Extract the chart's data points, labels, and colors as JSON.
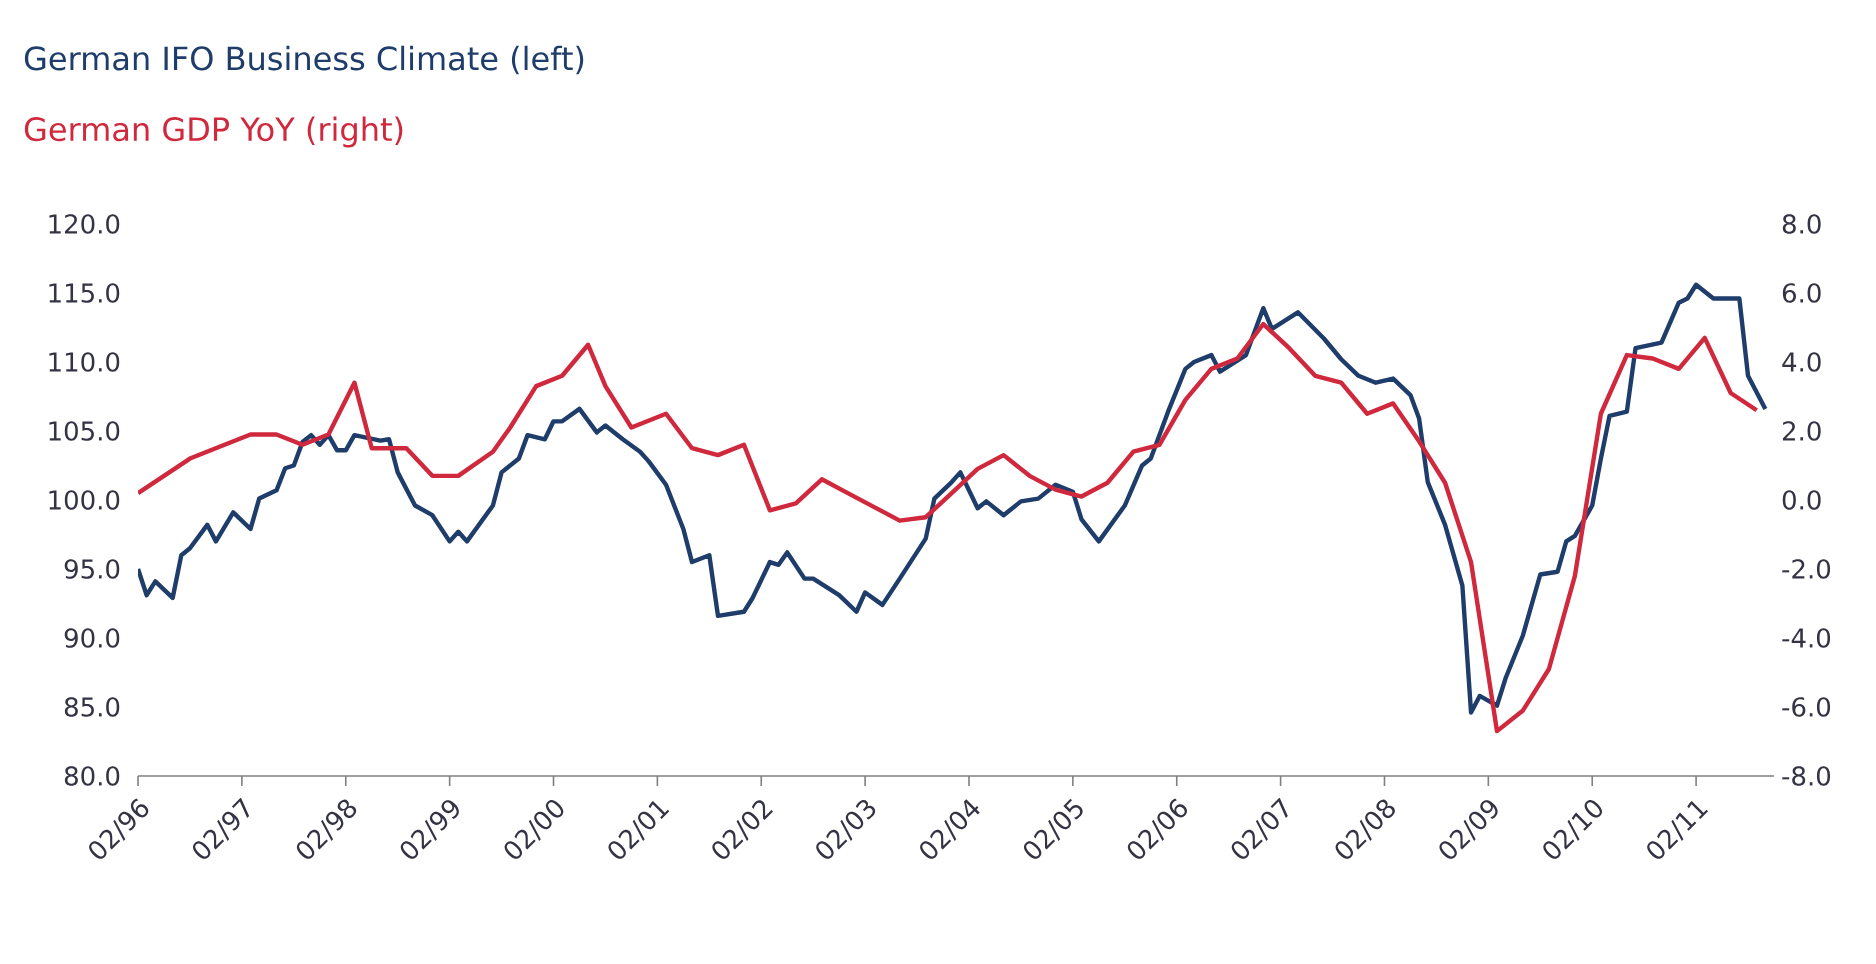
{
  "chart_data": {
    "type": "line",
    "xlim": [
      "1996-02",
      "2011-11"
    ],
    "xticks": [
      {
        "value": "1996-02",
        "label": "02/96"
      },
      {
        "value": "1997-02",
        "label": "02/97"
      },
      {
        "value": "1998-02",
        "label": "02/98"
      },
      {
        "value": "1999-02",
        "label": "02/99"
      },
      {
        "value": "2000-02",
        "label": "02/00"
      },
      {
        "value": "2001-02",
        "label": "02/01"
      },
      {
        "value": "2002-02",
        "label": "02/02"
      },
      {
        "value": "2003-02",
        "label": "02/03"
      },
      {
        "value": "2004-02",
        "label": "02/04"
      },
      {
        "value": "2005-02",
        "label": "02/05"
      },
      {
        "value": "2006-02",
        "label": "02/06"
      },
      {
        "value": "2007-02",
        "label": "02/07"
      },
      {
        "value": "2008-02",
        "label": "02/08"
      },
      {
        "value": "2009-02",
        "label": "02/09"
      },
      {
        "value": "2010-02",
        "label": "02/10"
      },
      {
        "value": "2011-02",
        "label": "02/11"
      }
    ],
    "ylim": [
      80,
      120
    ],
    "yticks": [
      {
        "value": 80,
        "label": "80.0"
      },
      {
        "value": 85,
        "label": "85.0"
      },
      {
        "value": 90,
        "label": "90.0"
      },
      {
        "value": 95,
        "label": "95.0"
      },
      {
        "value": 100,
        "label": "100.0"
      },
      {
        "value": 105,
        "label": "105.0"
      },
      {
        "value": 110,
        "label": "110.0"
      },
      {
        "value": 115,
        "label": "115.0"
      },
      {
        "value": 120,
        "label": "120.0"
      }
    ],
    "y2lim": [
      -8,
      8
    ],
    "y2ticks": [
      {
        "value": -8,
        "label": "-8.0"
      },
      {
        "value": -6,
        "label": "-6.0"
      },
      {
        "value": -4,
        "label": "-4.0"
      },
      {
        "value": -2,
        "label": "-2.0"
      },
      {
        "value": 0,
        "label": "0.0"
      },
      {
        "value": 2,
        "label": "2.0"
      },
      {
        "value": 4,
        "label": "4.0"
      },
      {
        "value": 6,
        "label": "6.0"
      },
      {
        "value": 8,
        "label": "8.0"
      }
    ],
    "grid": false,
    "line_style": "solid",
    "marker": "none",
    "series": [
      {
        "name": "German IFO Business Climate (left)",
        "color": "#1f3d6b",
        "x": [
          "1996-02",
          "1996-03",
          "1996-04",
          "1996-06",
          "1996-07",
          "1996-08",
          "1996-10",
          "1996-11",
          "1997-01",
          "1997-03",
          "1997-04",
          "1997-06",
          "1997-07",
          "1997-08",
          "1997-09",
          "1997-10",
          "1997-11",
          "1997-12",
          "1998-01",
          "1998-02",
          "1998-03",
          "1998-06",
          "1998-07",
          "1998-08",
          "1998-10",
          "1998-12",
          "1999-02",
          "1999-03",
          "1999-04",
          "1999-07",
          "1999-08",
          "1999-10",
          "1999-11",
          "2000-01",
          "2000-02",
          "2000-03",
          "2000-05",
          "2000-07",
          "2000-08",
          "2000-10",
          "2000-12",
          "2001-01",
          "2001-03",
          "2001-05",
          "2001-06",
          "2001-08",
          "2001-09",
          "2001-12",
          "2002-01",
          "2002-03",
          "2002-04",
          "2002-05",
          "2002-07",
          "2002-08",
          "2002-11",
          "2003-01",
          "2003-02",
          "2003-04",
          "2003-06",
          "2003-09",
          "2003-10",
          "2003-12",
          "2004-01",
          "2004-03",
          "2004-04",
          "2004-06",
          "2004-08",
          "2004-10",
          "2004-12",
          "2005-02",
          "2005-03",
          "2005-05",
          "2005-08",
          "2005-10",
          "2005-11",
          "2006-01",
          "2006-03",
          "2006-04",
          "2006-06",
          "2006-07",
          "2006-10",
          "2006-12",
          "2007-01",
          "2007-04",
          "2007-07",
          "2007-09",
          "2007-11",
          "2008-01",
          "2008-03",
          "2008-05",
          "2008-06",
          "2008-07",
          "2008-09",
          "2008-11",
          "2008-12",
          "2009-01",
          "2009-03",
          "2009-04",
          "2009-06",
          "2009-08",
          "2009-10",
          "2009-11",
          "2009-12",
          "2010-02",
          "2010-03",
          "2010-04",
          "2010-06",
          "2010-07",
          "2010-10",
          "2010-12",
          "2011-01",
          "2011-02",
          "2011-04",
          "2011-07",
          "2011-08",
          "2011-10"
        ],
        "values": [
          95.0,
          93.1,
          94.1,
          92.9,
          96.0,
          96.5,
          98.2,
          97.0,
          99.1,
          97.9,
          100.1,
          100.7,
          102.3,
          102.5,
          104.2,
          104.7,
          104.0,
          104.7,
          103.6,
          103.6,
          104.7,
          104.3,
          104.4,
          102.0,
          99.6,
          98.9,
          97.0,
          97.7,
          97.0,
          99.6,
          102.0,
          103.0,
          104.7,
          104.4,
          105.7,
          105.7,
          106.6,
          104.9,
          105.4,
          104.4,
          103.5,
          102.8,
          101.1,
          97.9,
          95.5,
          96.0,
          91.6,
          91.9,
          92.9,
          95.5,
          95.3,
          96.2,
          94.3,
          94.3,
          93.1,
          91.9,
          93.3,
          92.4,
          94.3,
          97.2,
          100.1,
          101.3,
          102.0,
          99.4,
          99.9,
          98.9,
          99.9,
          100.1,
          101.1,
          100.6,
          98.6,
          97.0,
          99.6,
          102.5,
          103.0,
          106.4,
          109.5,
          110.0,
          110.5,
          109.3,
          110.5,
          113.9,
          112.4,
          113.6,
          111.7,
          110.2,
          109.0,
          108.5,
          108.8,
          107.6,
          105.9,
          101.3,
          98.2,
          93.8,
          84.6,
          85.8,
          85.1,
          87.1,
          90.2,
          94.6,
          94.8,
          97.0,
          97.4,
          99.6,
          103.0,
          106.1,
          106.4,
          111.0,
          111.4,
          114.3,
          114.6,
          115.6,
          114.6,
          114.6,
          109.0,
          106.6
        ]
      },
      {
        "name": "German GDP YoY (right)",
        "color": "#d0283c",
        "axis": "y2",
        "x": [
          "1996-02",
          "1996-08",
          "1996-12",
          "1997-03",
          "1997-06",
          "1997-09",
          "1997-12",
          "1998-03",
          "1998-05",
          "1998-09",
          "1998-12",
          "1999-03",
          "1999-07",
          "1999-09",
          "1999-12",
          "2000-03",
          "2000-06",
          "2000-08",
          "2000-11",
          "2001-03",
          "2001-06",
          "2001-09",
          "2001-12",
          "2002-03",
          "2002-06",
          "2002-09",
          "2002-12",
          "2003-03",
          "2003-06",
          "2003-09",
          "2003-12",
          "2004-03",
          "2004-06",
          "2004-09",
          "2004-12",
          "2005-03",
          "2005-06",
          "2005-09",
          "2005-12",
          "2006-03",
          "2006-06",
          "2006-09",
          "2006-12",
          "2007-03",
          "2007-06",
          "2007-09",
          "2007-12",
          "2008-03",
          "2008-06",
          "2008-09",
          "2008-12",
          "2009-03",
          "2009-06",
          "2009-09",
          "2009-12",
          "2010-03",
          "2010-06",
          "2010-09",
          "2010-12",
          "2011-03",
          "2011-06",
          "2011-09"
        ],
        "values": [
          0.2,
          1.2,
          1.6,
          1.9,
          1.9,
          1.6,
          1.9,
          3.4,
          1.5,
          1.5,
          0.7,
          0.7,
          1.4,
          2.1,
          3.3,
          3.6,
          4.5,
          3.3,
          2.1,
          2.5,
          1.5,
          1.3,
          1.6,
          -0.3,
          -0.1,
          0.6,
          0.2,
          -0.2,
          -0.6,
          -0.5,
          0.2,
          0.9,
          1.3,
          0.7,
          0.3,
          0.1,
          0.5,
          1.4,
          1.6,
          2.9,
          3.8,
          4.1,
          5.1,
          4.4,
          3.6,
          3.4,
          2.5,
          2.8,
          1.7,
          0.5,
          -1.8,
          -6.7,
          -6.1,
          -4.9,
          -2.2,
          2.5,
          4.2,
          4.1,
          3.8,
          4.7,
          3.1,
          2.6
        ]
      }
    ]
  }
}
